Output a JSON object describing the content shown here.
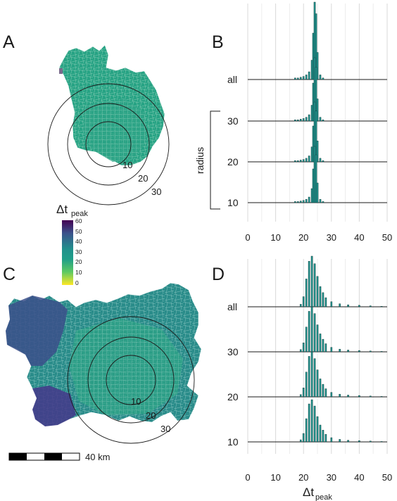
{
  "figure": {
    "panels": [
      "A",
      "B",
      "C",
      "D"
    ],
    "ring_labels": [
      "10",
      "20",
      "30"
    ],
    "colorbar": {
      "title_main": "Δt",
      "title_sub": "peak",
      "ticks": [
        "60",
        "50",
        "40",
        "30",
        "20",
        "10",
        "0"
      ],
      "colors": [
        "#440154",
        "#3b528b",
        "#21918c",
        "#1f9e89",
        "#5ec962",
        "#fde725"
      ]
    },
    "radius_label": "radius",
    "scale_bar": "40 km",
    "xlabel_main": "Δt",
    "xlabel_sub": "peak"
  },
  "chart_data": [
    {
      "type": "histogram",
      "panel": "B",
      "xlim": [
        0,
        50
      ],
      "xticks": [
        "0",
        "10",
        "20",
        "30",
        "40",
        "50"
      ],
      "rows": [
        "all",
        "30",
        "20",
        "10"
      ],
      "bins": [
        [
          17,
          0.02
        ],
        [
          18,
          0.02
        ],
        [
          19,
          0.03
        ],
        [
          20,
          0.04
        ],
        [
          21,
          0.06
        ],
        [
          22,
          0.1
        ],
        [
          23,
          0.25
        ],
        [
          23.5,
          0.6
        ],
        [
          24,
          1.0
        ],
        [
          24.5,
          0.85
        ],
        [
          25,
          0.35
        ],
        [
          26,
          0.06
        ],
        [
          27,
          0.02
        ]
      ]
    },
    {
      "type": "histogram",
      "panel": "D",
      "xlim": [
        0,
        50
      ],
      "xticks": [
        "0",
        "10",
        "20",
        "30",
        "40",
        "50"
      ],
      "rows": [
        "all",
        "30",
        "20",
        "10"
      ],
      "bins": [
        [
          19,
          0.05
        ],
        [
          20,
          0.2
        ],
        [
          21,
          0.55
        ],
        [
          22,
          0.9
        ],
        [
          23,
          1.0
        ],
        [
          24,
          0.85
        ],
        [
          25,
          0.6
        ],
        [
          26,
          0.4
        ],
        [
          27,
          0.28
        ],
        [
          28,
          0.18
        ],
        [
          30,
          0.1
        ],
        [
          33,
          0.06
        ],
        [
          36,
          0.04
        ],
        [
          40,
          0.03
        ],
        [
          44,
          0.02
        ],
        [
          48,
          0.01
        ]
      ]
    }
  ]
}
